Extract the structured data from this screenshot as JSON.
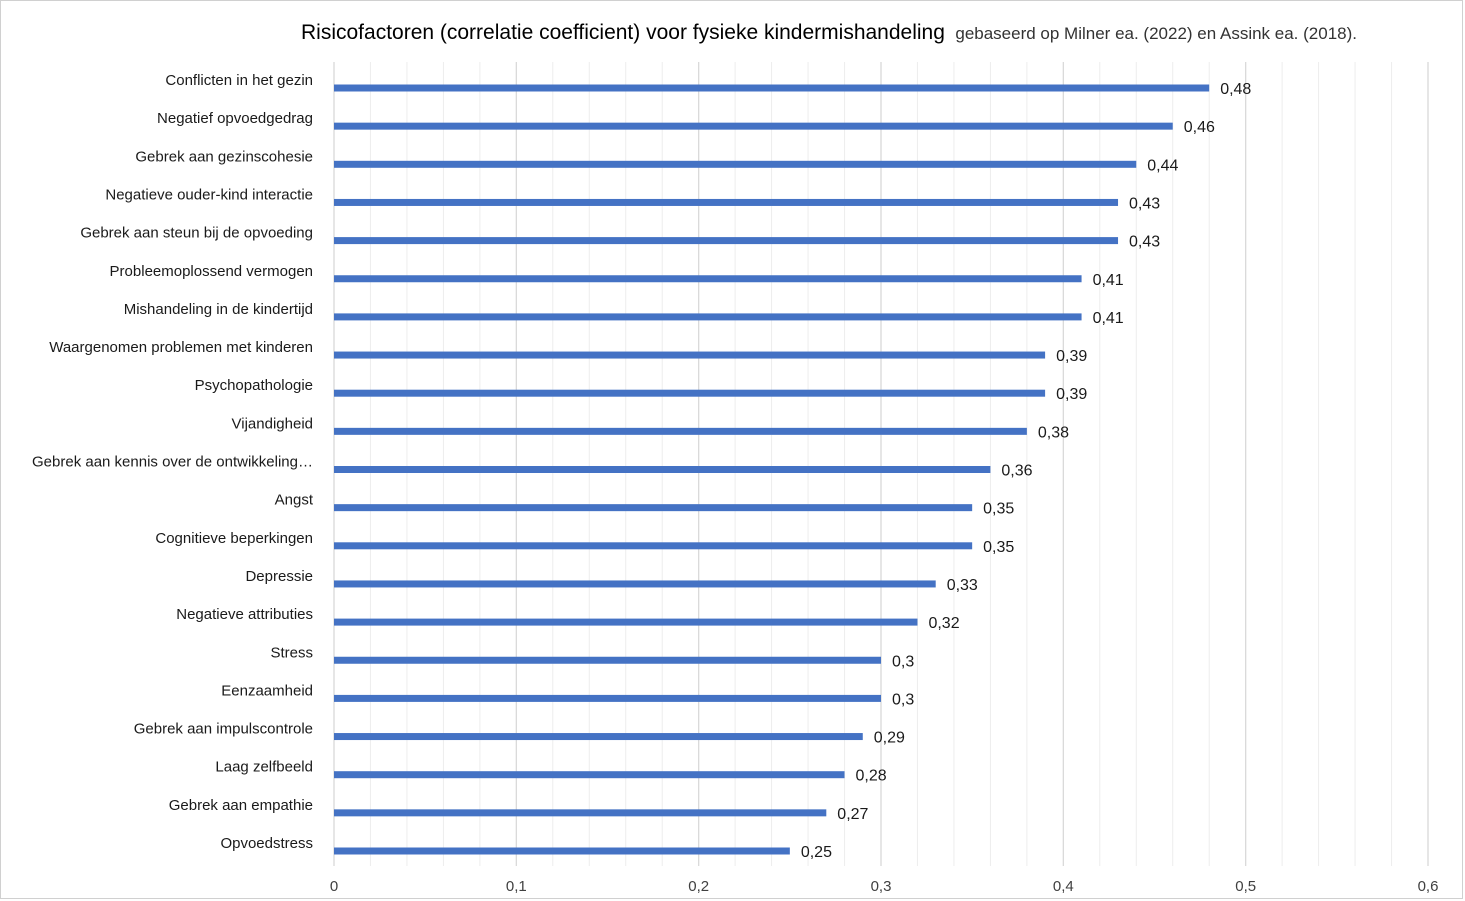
{
  "chart_data": {
    "type": "bar",
    "orientation": "horizontal",
    "title": "Risicofactoren (correlatie coefficient) voor fysieke kindermishandeling",
    "subtitle": "gebaseerd op Milner ea. (2022) en Assink ea. (2018).",
    "categories": [
      "Conflicten in het gezin",
      "Negatief opvoedgedrag",
      "Gebrek aan gezinscohesie",
      "Negatieve ouder-kind interactie",
      "Gebrek aan steun bij de opvoeding",
      "Probleemoplossend vermogen",
      "Mishandeling in de kindertijd",
      "Waargenomen problemen met kinderen",
      "Psychopathologie",
      "Vijandigheid",
      "Gebrek aan kennis over de ontwikkeling…",
      "Angst",
      "Cognitieve beperkingen",
      "Depressie",
      "Negatieve attributies",
      "Stress",
      "Eenzaamheid",
      "Gebrek aan impulscontrole",
      "Laag zelfbeeld",
      "Gebrek aan empathie",
      "Opvoedstress"
    ],
    "values": [
      0.48,
      0.46,
      0.44,
      0.43,
      0.43,
      0.41,
      0.41,
      0.39,
      0.39,
      0.38,
      0.36,
      0.35,
      0.35,
      0.33,
      0.32,
      0.3,
      0.3,
      0.29,
      0.28,
      0.27,
      0.25
    ],
    "value_labels": [
      "0,48",
      "0,46",
      "0,44",
      "0,43",
      "0,43",
      "0,41",
      "0,41",
      "0,39",
      "0,39",
      "0,38",
      "0,36",
      "0,35",
      "0,35",
      "0,33",
      "0,32",
      "0,3",
      "0,3",
      "0,29",
      "0,28",
      "0,27",
      "0,25"
    ],
    "xlim": [
      0,
      0.6
    ],
    "x_ticks": [
      0,
      0.1,
      0.2,
      0.3,
      0.4,
      0.5,
      0.6
    ],
    "x_tick_labels": [
      "0",
      "0,1",
      "0,2",
      "0,3",
      "0,4",
      "0,5",
      "0,6"
    ],
    "xlabel": "",
    "ylabel": "",
    "grid": "vertical major and minor",
    "legend": "none",
    "colors": {
      "bar": "#4472c4",
      "major_grid": "#d9d9d9",
      "minor_grid": "#ededed"
    }
  }
}
